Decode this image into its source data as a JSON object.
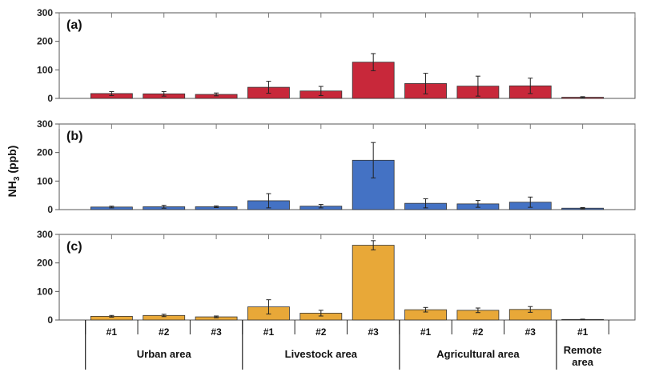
{
  "chart_data": {
    "type": "bar",
    "ylabel_main": "NH",
    "ylabel_sub": "3",
    "ylabel_unit": " (ppb)",
    "ylim": [
      0,
      300
    ],
    "yticks": [
      0,
      100,
      200,
      300
    ],
    "site_labels": [
      "#1",
      "#2",
      "#3",
      "#1",
      "#2",
      "#3",
      "#1",
      "#2",
      "#3",
      "#1"
    ],
    "groups": [
      {
        "name": "Urban area",
        "lines": [
          "Urban area"
        ],
        "count": 3
      },
      {
        "name": "Livestock area",
        "lines": [
          "Livestock area"
        ],
        "count": 3
      },
      {
        "name": "Agricultural area",
        "lines": [
          "Agricultural area"
        ],
        "count": 3
      },
      {
        "name": "Remote area",
        "lines": [
          "Remote",
          "area"
        ],
        "count": 1
      }
    ],
    "panels": [
      {
        "label": "(a)",
        "color": "#c8283a",
        "values": [
          17,
          16,
          14,
          39,
          26,
          127,
          52,
          43,
          44,
          4
        ],
        "errors": [
          7,
          8,
          5,
          21,
          16,
          30,
          36,
          35,
          27,
          2
        ]
      },
      {
        "label": "(b)",
        "color": "#4472c4",
        "values": [
          9,
          10,
          10,
          31,
          12,
          173,
          22,
          20,
          26,
          5
        ],
        "errors": [
          3,
          5,
          3,
          25,
          6,
          62,
          16,
          12,
          18,
          2
        ]
      },
      {
        "label": "(c)",
        "color": "#e8a838",
        "values": [
          13,
          16,
          11,
          46,
          24,
          262,
          36,
          34,
          37,
          2
        ],
        "errors": [
          3,
          4,
          3,
          25,
          10,
          16,
          8,
          8,
          10,
          1
        ]
      }
    ]
  }
}
